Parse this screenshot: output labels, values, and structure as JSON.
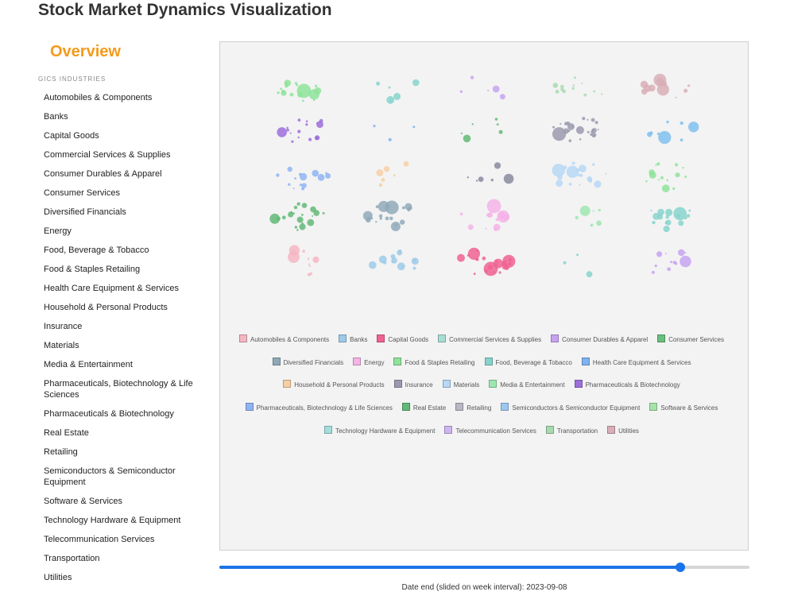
{
  "page": {
    "title": "Stock Market Dynamics Visualization"
  },
  "sidebar": {
    "heading": "Overview",
    "section_label": "GICS INDUSTRIES",
    "items": [
      "Automobiles & Components",
      "Banks",
      "Capital Goods",
      "Commercial Services & Supplies",
      "Consumer Durables & Apparel",
      "Consumer Services",
      "Diversified Financials",
      "Energy",
      "Food, Beverage & Tobacco",
      "Food & Staples Retailing",
      "Health Care Equipment & Services",
      "Household & Personal Products",
      "Insurance",
      "Materials",
      "Media & Entertainment",
      "Pharmaceuticals, Biotechnology & Life Sciences",
      "Pharmaceuticals & Biotechnology",
      "Real Estate",
      "Retailing",
      "Semiconductors & Semiconductor Equipment",
      "Software & Services",
      "Technology Hardware & Equipment",
      "Telecommunication Services",
      "Transportation",
      "Utilities"
    ]
  },
  "legend": [
    {
      "label": "Automobiles & Components",
      "color": "#f4b6c2"
    },
    {
      "label": "Banks",
      "color": "#9ecae9"
    },
    {
      "label": "Capital Goods",
      "color": "#f06292"
    },
    {
      "label": "Commercial Services & Supplies",
      "color": "#a8ddd6"
    },
    {
      "label": "Consumer Durables & Apparel",
      "color": "#c5a3f0"
    },
    {
      "label": "Consumer Services",
      "color": "#6abf7b"
    },
    {
      "label": "Diversified Financials",
      "color": "#8fa9b8"
    },
    {
      "label": "Energy",
      "color": "#f5b3e6"
    },
    {
      "label": "Food & Staples Retailing",
      "color": "#8ee39a"
    },
    {
      "label": "Food, Beverage & Tobacco",
      "color": "#86d3cc"
    },
    {
      "label": "Health Care Equipment & Services",
      "color": "#7fb2f0"
    },
    {
      "label": "Household & Personal Products",
      "color": "#f7cfa3"
    },
    {
      "label": "Insurance",
      "color": "#9a9aae"
    },
    {
      "label": "Materials",
      "color": "#b7d7f5"
    },
    {
      "label": "Media & Entertainment",
      "color": "#9de6b0"
    },
    {
      "label": "Pharmaceuticals & Biotechnology",
      "color": "#9c6fd9"
    },
    {
      "label": "Pharmaceuticals, Biotechnology & Life Sciences",
      "color": "#8fb4f2"
    },
    {
      "label": "Real Estate",
      "color": "#62b877"
    },
    {
      "label": "Retailing",
      "color": "#b8b8c4"
    },
    {
      "label": "Semiconductors & Semiconductor Equipment",
      "color": "#9cc8ef"
    },
    {
      "label": "Software & Services",
      "color": "#a6e3a8"
    },
    {
      "label": "Technology Hardware & Equipment",
      "color": "#a3dedc"
    },
    {
      "label": "Telecommunication Services",
      "color": "#cdb5f2"
    },
    {
      "label": "Transportation",
      "color": "#a8d9b0"
    },
    {
      "label": "Utilities",
      "color": "#d9aeb6"
    }
  ],
  "clusters": [
    {
      "row": 0,
      "col": 0,
      "color": "#8ee39a",
      "bubbles": 18
    },
    {
      "row": 0,
      "col": 1,
      "color": "#86d3cc",
      "bubbles": 6
    },
    {
      "row": 0,
      "col": 2,
      "color": "#c5a3f0",
      "bubbles": 5
    },
    {
      "row": 0,
      "col": 3,
      "color": "#a8d9b0",
      "bubbles": 12
    },
    {
      "row": 0,
      "col": 4,
      "color": "#d9aeb6",
      "bubbles": 11
    },
    {
      "row": 1,
      "col": 0,
      "color": "#9c6fd9",
      "bubbles": 16
    },
    {
      "row": 1,
      "col": 1,
      "color": "#7fb2f0",
      "bubbles": 3
    },
    {
      "row": 1,
      "col": 2,
      "color": "#62b877",
      "bubbles": 6
    },
    {
      "row": 1,
      "col": 3,
      "color": "#9a9aae",
      "bubbles": 24
    },
    {
      "row": 1,
      "col": 4,
      "color": "#7fc0ee",
      "bubbles": 8
    },
    {
      "row": 2,
      "col": 0,
      "color": "#8fb4f2",
      "bubbles": 15
    },
    {
      "row": 2,
      "col": 1,
      "color": "#f7cfa3",
      "bubbles": 6
    },
    {
      "row": 2,
      "col": 2,
      "color": "#8a8aa0",
      "bubbles": 6
    },
    {
      "row": 2,
      "col": 3,
      "color": "#b7d7f5",
      "bubbles": 18
    },
    {
      "row": 2,
      "col": 4,
      "color": "#8ee39a",
      "bubbles": 14
    },
    {
      "row": 3,
      "col": 0,
      "color": "#62b877",
      "bubbles": 20
    },
    {
      "row": 3,
      "col": 1,
      "color": "#8fa9b8",
      "bubbles": 20
    },
    {
      "row": 3,
      "col": 2,
      "color": "#f5b3e6",
      "bubbles": 13
    },
    {
      "row": 3,
      "col": 3,
      "color": "#9de6b0",
      "bubbles": 7
    },
    {
      "row": 3,
      "col": 4,
      "color": "#86d3cc",
      "bubbles": 16
    },
    {
      "row": 4,
      "col": 0,
      "color": "#f4b6c2",
      "bubbles": 11
    },
    {
      "row": 4,
      "col": 1,
      "color": "#9ecae9",
      "bubbles": 13
    },
    {
      "row": 4,
      "col": 2,
      "color": "#f06292",
      "bubbles": 24
    },
    {
      "row": 4,
      "col": 3,
      "color": "#86d3cc",
      "bubbles": 3
    },
    {
      "row": 4,
      "col": 4,
      "color": "#c5a3f0",
      "bubbles": 11
    }
  ],
  "slider": {
    "value": 0.87
  },
  "date_caption": "Date end (slided on week interval): 2023-09-08"
}
